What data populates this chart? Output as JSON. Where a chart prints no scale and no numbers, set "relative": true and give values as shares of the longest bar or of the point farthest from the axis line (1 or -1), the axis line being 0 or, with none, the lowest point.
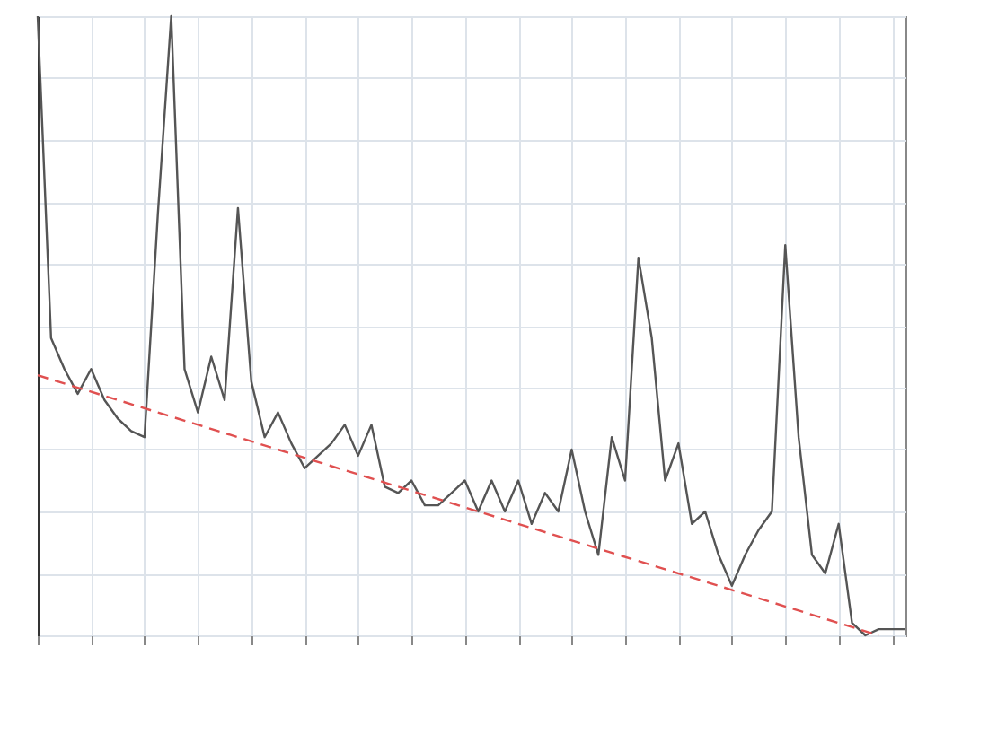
{
  "chart_data": {
    "type": "line",
    "relative": true,
    "grid": true,
    "tick_labels": false,
    "categories": [
      null,
      null,
      null,
      null,
      null,
      null,
      null,
      null,
      null,
      null,
      null,
      null,
      null,
      null,
      null,
      null,
      null,
      null,
      null,
      null,
      null,
      null,
      null,
      null,
      null,
      null,
      null,
      null,
      null,
      null,
      null,
      null,
      null,
      null,
      null,
      null,
      null,
      null,
      null,
      null,
      null,
      null,
      null,
      null,
      null,
      null,
      null,
      null,
      null,
      null,
      null,
      null,
      null,
      null,
      null,
      null,
      null,
      null,
      null,
      null,
      null,
      null,
      null,
      null,
      null,
      null
    ],
    "series": [
      {
        "color": "#555555",
        "line_style": "solid",
        "values": [
          1.0,
          0.48,
          0.43,
          0.39,
          0.43,
          0.38,
          0.35,
          0.33,
          0.32,
          0.68,
          1.0,
          0.43,
          0.36,
          0.45,
          0.38,
          0.69,
          0.41,
          0.32,
          0.36,
          0.31,
          0.27,
          0.29,
          0.31,
          0.34,
          0.29,
          0.34,
          0.24,
          0.23,
          0.25,
          0.21,
          0.21,
          0.23,
          0.25,
          0.2,
          0.25,
          0.2,
          0.25,
          0.18,
          0.23,
          0.2,
          0.3,
          0.2,
          0.13,
          0.32,
          0.25,
          0.61,
          0.48,
          0.25,
          0.31,
          0.18,
          0.2,
          0.13,
          0.08,
          0.13,
          0.17,
          0.2,
          0.63,
          0.32,
          0.13,
          0.1,
          0.18,
          0.02,
          0.0,
          0.01,
          0.01,
          0.01
        ]
      },
      {
        "color": "#e05050",
        "line_style": "dashed",
        "values": [
          0.42,
          null,
          null,
          null,
          null,
          null,
          null,
          null,
          null,
          null,
          null,
          null,
          null,
          null,
          null,
          null,
          null,
          null,
          null,
          null,
          null,
          null,
          null,
          null,
          null,
          null,
          null,
          null,
          null,
          null,
          null,
          null,
          null,
          null,
          null,
          null,
          null,
          null,
          null,
          null,
          null,
          null,
          null,
          null,
          null,
          null,
          null,
          null,
          null,
          null,
          null,
          null,
          null,
          null,
          null,
          null,
          null,
          null,
          null,
          null,
          null,
          null,
          null,
          0.0,
          null,
          null
        ]
      }
    ]
  }
}
